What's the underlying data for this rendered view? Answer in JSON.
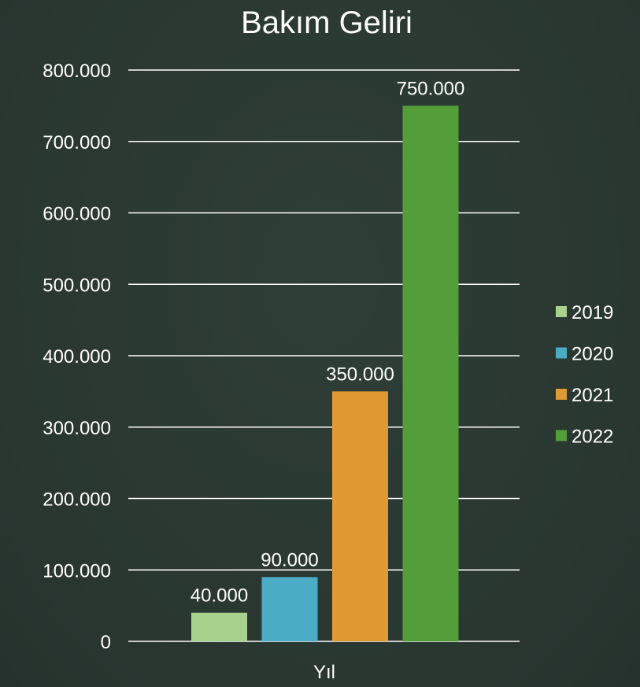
{
  "chart_data": {
    "type": "bar",
    "title": "Bakım Geliri",
    "xlabel": "Yıl",
    "ylabel": "",
    "categories": [
      "Yıl"
    ],
    "series": [
      {
        "name": "2019",
        "values": [
          40000
        ],
        "label": "40.000",
        "color": "#a9d18e"
      },
      {
        "name": "2020",
        "values": [
          90000
        ],
        "label": "90.000",
        "color": "#4bacc6"
      },
      {
        "name": "2021",
        "values": [
          350000
        ],
        "label": "350.000",
        "color": "#e09a34"
      },
      {
        "name": "2022",
        "values": [
          750000
        ],
        "label": "750.000",
        "color": "#549e39"
      }
    ],
    "ylim": [
      0,
      800000
    ],
    "yticks": [
      {
        "value": 0,
        "label": "0"
      },
      {
        "value": 100000,
        "label": "100.000"
      },
      {
        "value": 200000,
        "label": "200.000"
      },
      {
        "value": 300000,
        "label": "300.000"
      },
      {
        "value": 400000,
        "label": "400.000"
      },
      {
        "value": 500000,
        "label": "500.000"
      },
      {
        "value": 600000,
        "label": "600.000"
      },
      {
        "value": 700000,
        "label": "700.000"
      },
      {
        "value": 800000,
        "label": "800.000"
      }
    ],
    "grid": true,
    "legend_position": "right"
  }
}
